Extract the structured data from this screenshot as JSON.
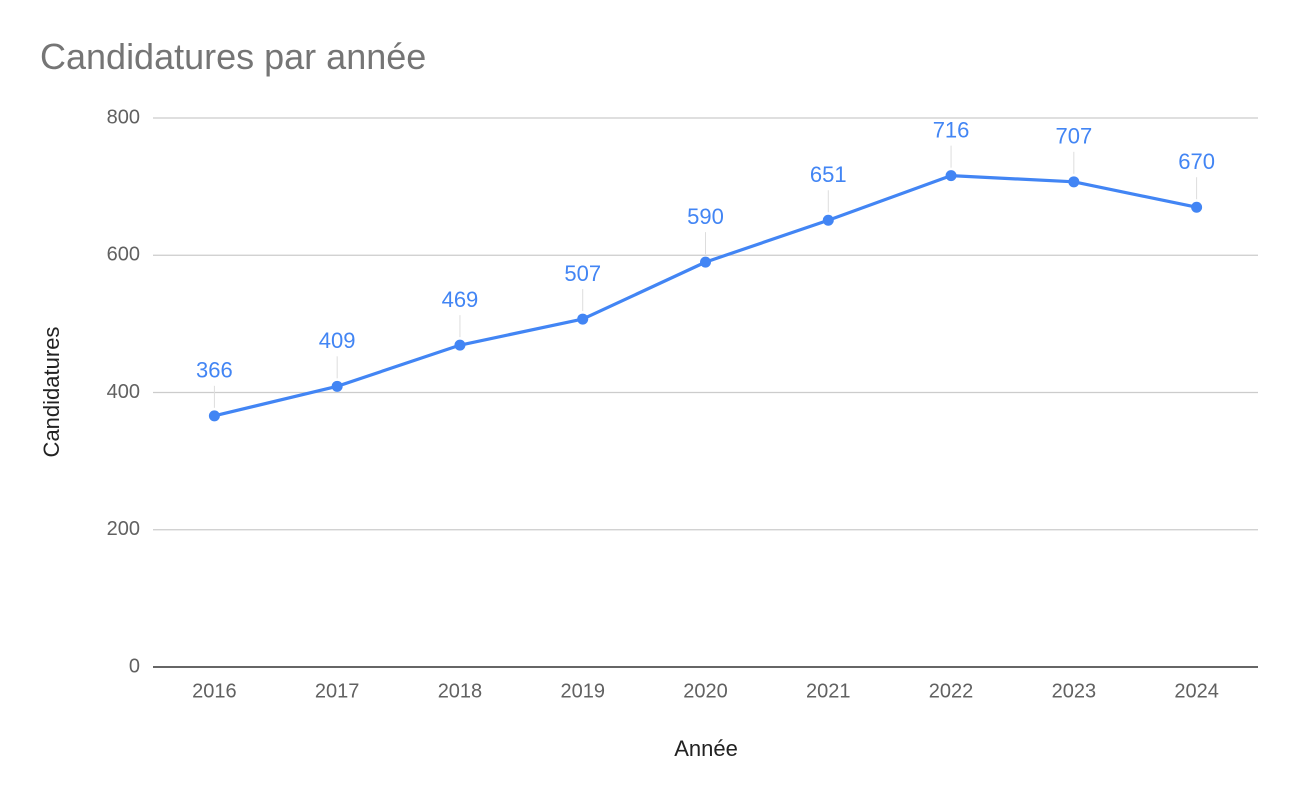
{
  "chart_data": {
    "type": "line",
    "title": "Candidatures par année",
    "xlabel": "Année",
    "ylabel": "Candidatures",
    "categories": [
      "2016",
      "2017",
      "2018",
      "2019",
      "2020",
      "2021",
      "2022",
      "2023",
      "2024"
    ],
    "series": [
      {
        "values": [
          366,
          409,
          469,
          507,
          590,
          651,
          716,
          707,
          670
        ],
        "color": "#4285f4"
      }
    ],
    "ylim": [
      0,
      800
    ],
    "yticks": [
      0,
      200,
      400,
      600,
      800
    ],
    "grid": true,
    "data_labels": true,
    "legend": "none"
  }
}
